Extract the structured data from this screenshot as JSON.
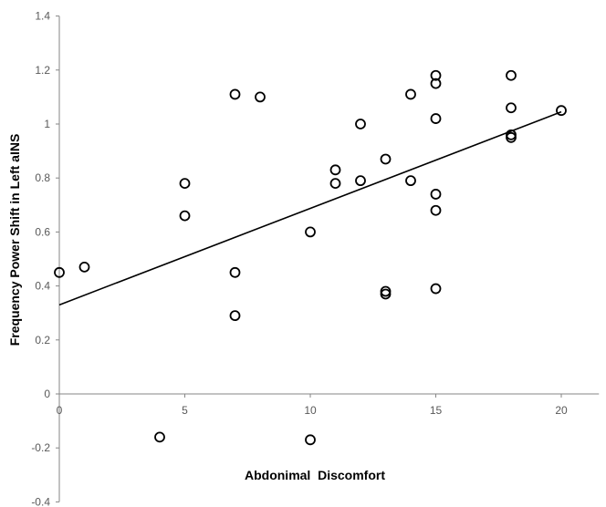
{
  "chart_data": {
    "type": "scatter",
    "title": "",
    "xlabel": "Abdonimal  Discomfort",
    "ylabel": "Frequency Power Shift in Left aINS",
    "xlim": [
      0,
      21.5
    ],
    "ylim": [
      -0.4,
      1.4
    ],
    "xticks": [
      0,
      5,
      10,
      15,
      20
    ],
    "yticks": [
      -0.4,
      -0.2,
      0,
      0.2,
      0.4,
      0.6,
      0.8,
      1,
      1.2,
      1.4
    ],
    "grid": false,
    "legend": "none",
    "marker": "open-circle",
    "points": [
      {
        "x": 0,
        "y": 0.45
      },
      {
        "x": 1,
        "y": 0.47
      },
      {
        "x": 4,
        "y": -0.16
      },
      {
        "x": 5,
        "y": 0.78
      },
      {
        "x": 5,
        "y": 0.66
      },
      {
        "x": 7,
        "y": 1.11
      },
      {
        "x": 7,
        "y": 0.45
      },
      {
        "x": 7,
        "y": 0.29
      },
      {
        "x": 8,
        "y": 1.1
      },
      {
        "x": 10,
        "y": 0.6
      },
      {
        "x": 10,
        "y": -0.17
      },
      {
        "x": 11,
        "y": 0.83
      },
      {
        "x": 11,
        "y": 0.78
      },
      {
        "x": 12,
        "y": 1.0
      },
      {
        "x": 12,
        "y": 0.79
      },
      {
        "x": 13,
        "y": 0.87
      },
      {
        "x": 13,
        "y": 0.38
      },
      {
        "x": 13,
        "y": 0.37
      },
      {
        "x": 14,
        "y": 1.11
      },
      {
        "x": 14,
        "y": 0.79
      },
      {
        "x": 15,
        "y": 1.18
      },
      {
        "x": 15,
        "y": 1.15
      },
      {
        "x": 15,
        "y": 1.02
      },
      {
        "x": 15,
        "y": 0.74
      },
      {
        "x": 15,
        "y": 0.68
      },
      {
        "x": 15,
        "y": 0.39
      },
      {
        "x": 18,
        "y": 1.18
      },
      {
        "x": 18,
        "y": 1.06
      },
      {
        "x": 18,
        "y": 0.96
      },
      {
        "x": 18,
        "y": 0.95
      },
      {
        "x": 20,
        "y": 1.05
      }
    ],
    "trendline": {
      "type": "linear",
      "from": {
        "x": 0,
        "y": 0.33
      },
      "to": {
        "x": 20,
        "y": 1.045
      }
    },
    "colors": {
      "marker": "#000000",
      "trendline": "#000000",
      "axis": "#868686",
      "tick_text": "#595959"
    }
  }
}
